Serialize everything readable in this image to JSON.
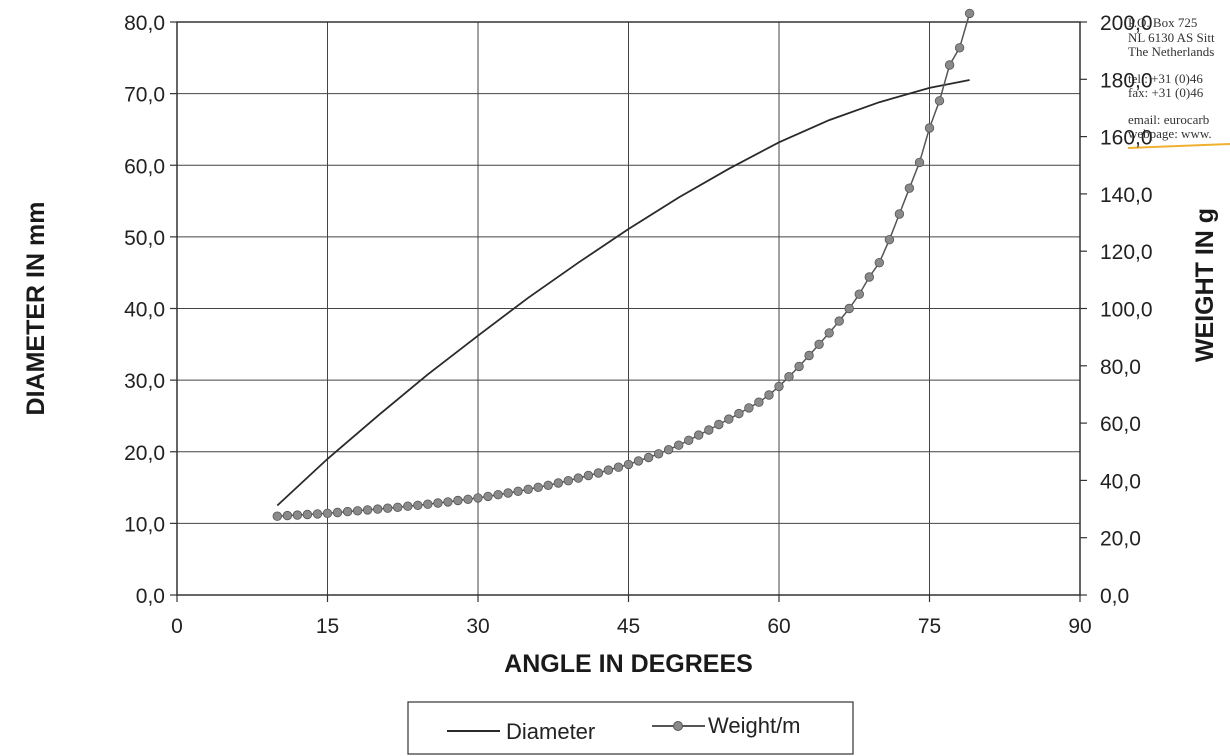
{
  "letterhead": {
    "lines": [
      "P.O. Box 725",
      "NL 6130 AS  Sitt",
      "The Netherlands",
      "tel.: +31 (0)46",
      "fax: +31 (0)46",
      "email: eurocarb",
      "webpage: www."
    ],
    "accent_color": "#f0b030"
  },
  "chart_data": {
    "type": "line",
    "xlabel": "ANGLE IN DEGREES",
    "ylabel": "DIAMETER IN mm",
    "y2label": "WEIGHT IN g",
    "xlim": [
      0,
      90
    ],
    "ylim": [
      0,
      80
    ],
    "y2lim": [
      0,
      200
    ],
    "x_ticks": [
      "0",
      "15",
      "30",
      "45",
      "60",
      "75",
      "90"
    ],
    "y_ticks": [
      "0,0",
      "10,0",
      "20,0",
      "30,0",
      "40,0",
      "50,0",
      "60,0",
      "70,0",
      "80,0"
    ],
    "y2_ticks": [
      "0,0",
      "20,0",
      "40,0",
      "60,0",
      "80,0",
      "100,0",
      "120,0",
      "140,0",
      "160,0",
      "180,0",
      "200,0"
    ],
    "grid": true,
    "legend_position": "bottom",
    "series": [
      {
        "name": "Diameter",
        "axis": "left",
        "color": "#2a2a2a",
        "marker": "none",
        "x": [
          10,
          15,
          20,
          25,
          30,
          35,
          40,
          45,
          50,
          55,
          60,
          65,
          70,
          75,
          79
        ],
        "y": [
          12.5,
          19.0,
          25.0,
          30.8,
          36.2,
          41.5,
          46.4,
          51.1,
          55.5,
          59.5,
          63.2,
          66.3,
          68.8,
          70.8,
          71.9
        ]
      },
      {
        "name": "Weight/m",
        "axis": "right",
        "color": "#555555",
        "marker": "dot",
        "x": [
          10,
          11,
          12,
          13,
          14,
          15,
          16,
          17,
          18,
          19,
          20,
          21,
          22,
          23,
          24,
          25,
          26,
          27,
          28,
          29,
          30,
          31,
          32,
          33,
          34,
          35,
          36,
          37,
          38,
          39,
          40,
          41,
          42,
          43,
          44,
          45,
          46,
          47,
          48,
          49,
          50,
          51,
          52,
          53,
          54,
          55,
          56,
          57,
          58,
          59,
          60,
          61,
          62,
          63,
          64,
          65,
          66,
          67,
          68,
          69,
          70,
          71,
          72,
          73,
          74,
          75,
          76,
          77,
          78,
          79
        ],
        "y": [
          27.5,
          27.7,
          27.9,
          28.1,
          28.3,
          28.5,
          28.8,
          29.1,
          29.4,
          29.7,
          30.0,
          30.3,
          30.6,
          31.0,
          31.3,
          31.7,
          32.1,
          32.5,
          33.0,
          33.4,
          33.9,
          34.4,
          35.0,
          35.6,
          36.2,
          36.9,
          37.6,
          38.3,
          39.1,
          39.9,
          40.8,
          41.7,
          42.6,
          43.6,
          44.6,
          45.6,
          46.8,
          48.0,
          49.3,
          50.7,
          52.3,
          54.0,
          55.8,
          57.6,
          59.5,
          61.4,
          63.3,
          65.3,
          67.3,
          69.8,
          72.8,
          76.2,
          79.8,
          83.6,
          87.5,
          91.5,
          95.6,
          100.0,
          105.0,
          111.0,
          116.0,
          124.0,
          133.0,
          142.0,
          151.0,
          163.0,
          172.5,
          185.0,
          191.0,
          203.0
        ]
      }
    ]
  }
}
